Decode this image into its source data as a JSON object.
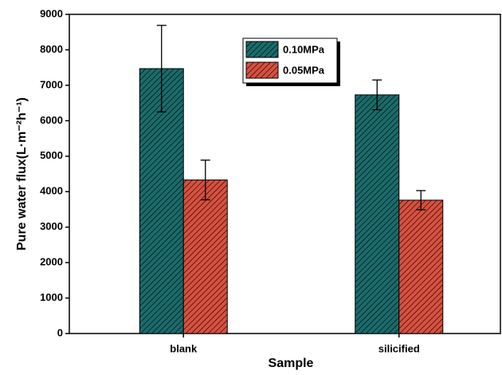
{
  "chart_data": {
    "type": "bar",
    "x_label": "Sample",
    "y_label": "Pure water flux(L·m⁻²h⁻¹)",
    "categories": [
      "blank",
      "silicified"
    ],
    "series": [
      {
        "name": "0.10MPa",
        "color": "#1b6b6b",
        "values": [
          7470,
          6730
        ],
        "errors": [
          1220,
          420
        ]
      },
      {
        "name": "0.05MPa",
        "color": "#d9503f",
        "values": [
          4330,
          3760
        ],
        "errors": [
          560,
          270
        ]
      }
    ],
    "ylim": [
      0,
      9000
    ],
    "yticks": [
      0,
      1000,
      2000,
      3000,
      4000,
      5000,
      6000,
      7000,
      8000,
      9000
    ],
    "legend": "top-center"
  }
}
